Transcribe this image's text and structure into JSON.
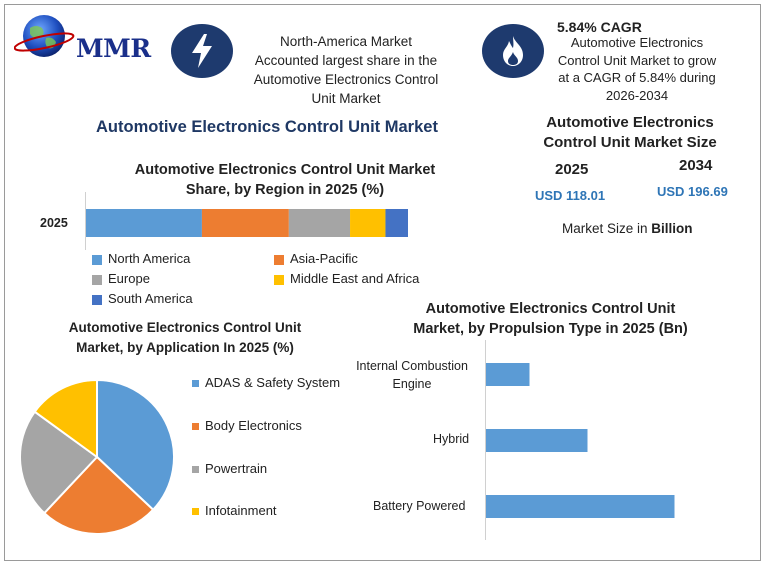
{
  "logo": {
    "text": "MMR"
  },
  "info1": {
    "icon": "lightning-bolt-icon",
    "text": [
      "North-America Market",
      "Accounted largest share in the",
      "Automotive Electronics Control",
      "Unit Market"
    ]
  },
  "info2": {
    "icon": "flame-icon",
    "title": "5.84% CAGR",
    "text": [
      "Automotive Electronics",
      "Control Unit Market to grow",
      "at a CAGR of 5.84% during",
      "2026-2034"
    ]
  },
  "main_title": "Automotive Electronics Control Unit Market",
  "size_panel": {
    "title": [
      "Automotive Electronics",
      "Control Unit Market Size"
    ],
    "year1": "2025",
    "year2": "2034",
    "value1": "USD  118.01",
    "value2": "USD 196.69",
    "unit_prefix": "Market Size in ",
    "unit_bold": "Billion"
  },
  "colors": {
    "north_america": "#5b9bd5",
    "asia_pacific": "#ed7d31",
    "europe": "#a5a5a5",
    "mea": "#ffc000",
    "south_america": "#4472c4",
    "bar": "#5b9bd5",
    "icon_bg": "#1e3a6e",
    "title_blue": "#1f3864"
  },
  "chart_data": [
    {
      "type": "bar",
      "orientation": "horizontal-stacked",
      "title": [
        "Automotive Electronics Control Unit Market",
        "Share, by Region in 2025 (%)"
      ],
      "categories": [
        "2025"
      ],
      "series": [
        {
          "name": "North America",
          "values": [
            36
          ]
        },
        {
          "name": "Asia-Pacific",
          "values": [
            27
          ]
        },
        {
          "name": "Europe",
          "values": [
            19
          ]
        },
        {
          "name": "Middle East and Africa",
          "values": [
            11
          ]
        },
        {
          "name": "South America",
          "values": [
            7
          ]
        }
      ],
      "legend_placement": "bottom",
      "grid": false
    },
    {
      "type": "pie",
      "title": [
        "Automotive Electronics Control Unit",
        "Market, by Application In 2025 (%)"
      ],
      "labels": [
        "ADAS & Safety System",
        "Body Electronics",
        "Powertrain",
        "Infotainment"
      ],
      "values": [
        37,
        25,
        23,
        15
      ],
      "legend_placement": "right"
    },
    {
      "type": "bar",
      "orientation": "horizontal",
      "title": [
        "Automotive Electronics Control Unit",
        "Market, by Propulsion Type in 2025 (Bn)"
      ],
      "categories": [
        "Internal Combustion\nEngine",
        "Hybrid",
        "Battery Powered"
      ],
      "values": [
        15,
        35,
        65
      ],
      "xlim": [
        0,
        80
      ],
      "grid": false
    }
  ]
}
